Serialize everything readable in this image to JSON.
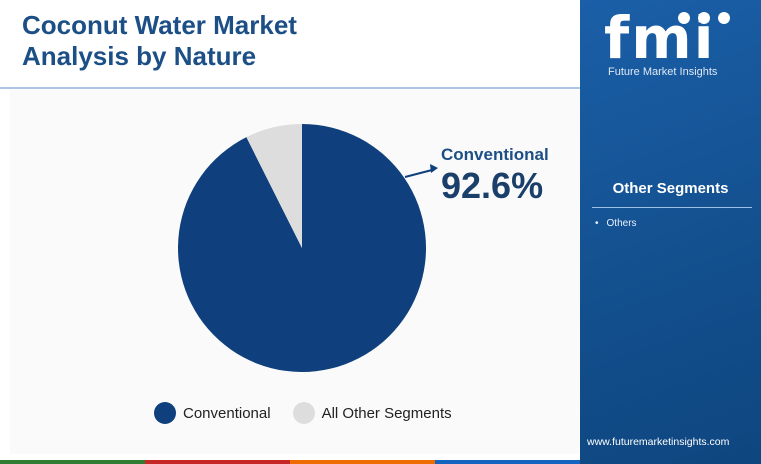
{
  "title_lines": [
    "Coconut Water Market",
    "Analysis by Nature"
  ],
  "brand": {
    "logo_text": "fmi",
    "name": "Future Market Insights",
    "website": "www.futuremarketinsights.com"
  },
  "colors": {
    "primary": "#0f3f7c",
    "secondary": "#dddddd",
    "title": "#1c4f86",
    "panel": "#1b5fa8",
    "bottom_bar": [
      "#2e7d32",
      "#c62828",
      "#ef6c00",
      "#1565c0"
    ]
  },
  "callout": {
    "label": "Conventional",
    "value": "92.6%"
  },
  "other_segments": {
    "title": "Other Segments",
    "items": [
      "Others"
    ]
  },
  "chart_data": {
    "type": "pie",
    "title": "Coconut Water Market Analysis by Nature",
    "slices": [
      {
        "label": "Conventional",
        "value": 92.6,
        "color": "#0f3f7c"
      },
      {
        "label": "All Other Segments",
        "value": 7.4,
        "color": "#dddddd"
      }
    ],
    "legend": [
      "Conventional",
      "All Other Segments"
    ],
    "legend_position": "bottom"
  }
}
